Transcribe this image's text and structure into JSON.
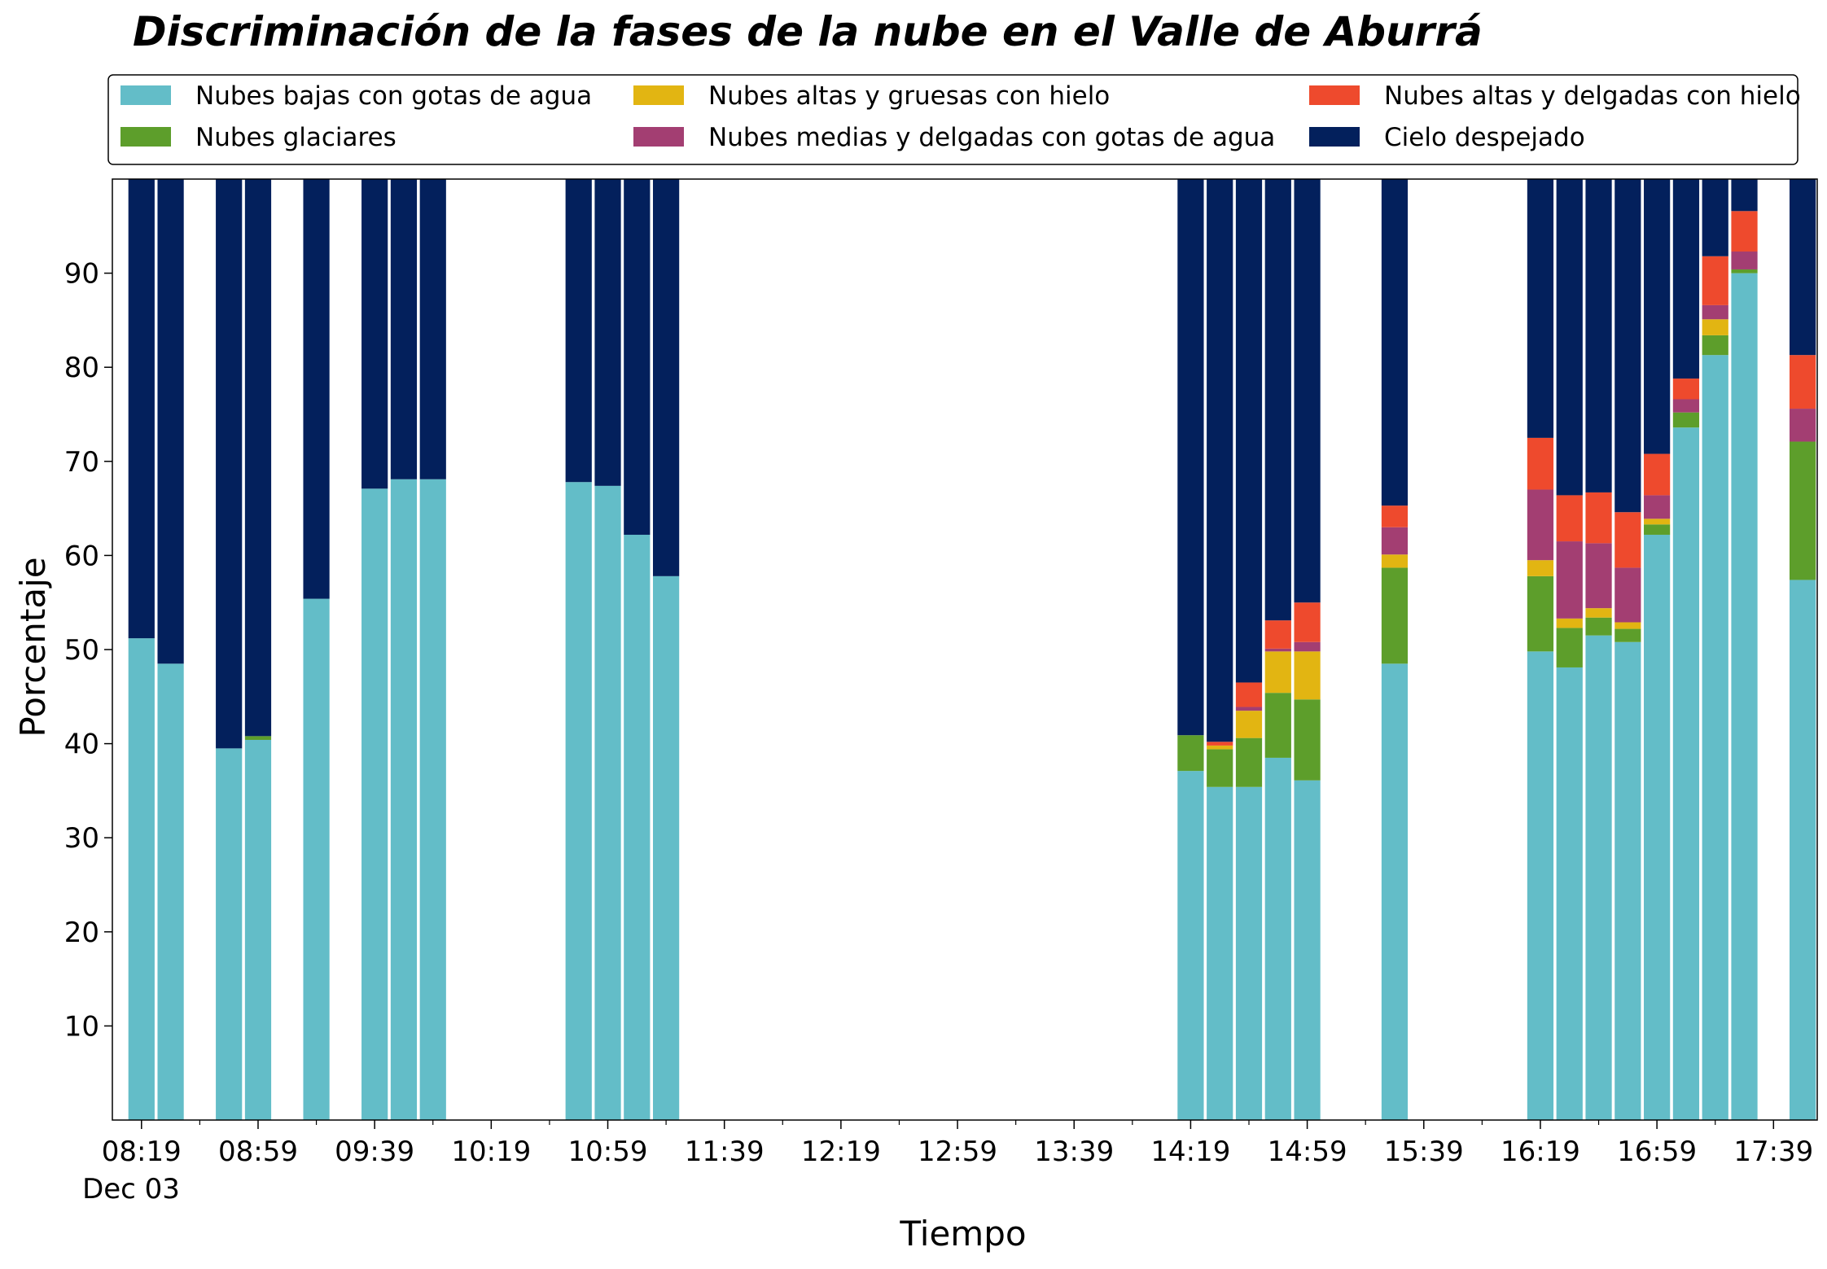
{
  "chart_data": {
    "type": "bar",
    "stacked": true,
    "title": "Discriminación de la fases de la nube en el Valle de Aburrá",
    "xlabel": "Tiempo",
    "ylabel": "Porcentaje",
    "ylim": [
      0,
      100
    ],
    "yticks": [
      10,
      20,
      30,
      40,
      50,
      60,
      70,
      80,
      90
    ],
    "x_range": [
      "08:09",
      "17:54"
    ],
    "x_tick_labels": [
      "08:19",
      "08:59",
      "09:39",
      "10:19",
      "10:59",
      "11:39",
      "12:19",
      "12:59",
      "13:39",
      "14:19",
      "14:59",
      "15:39",
      "16:19",
      "16:59",
      "17:39"
    ],
    "x_date_label": "Dec 03",
    "bar_interval_min": 10,
    "grid": false,
    "legend": {
      "placement": "top",
      "columns": 3
    },
    "x": [
      "08:19",
      "08:29",
      "08:49",
      "08:59",
      "09:19",
      "09:39",
      "09:49",
      "09:59",
      "10:49",
      "10:59",
      "11:09",
      "11:19",
      "14:19",
      "14:29",
      "14:39",
      "14:49",
      "14:59",
      "15:29",
      "16:19",
      "16:29",
      "16:39",
      "16:49",
      "16:59",
      "17:09",
      "17:19",
      "17:29",
      "17:49"
    ],
    "series": [
      {
        "name": "Nubes bajas con gotas de agua",
        "color": "#63bdc8",
        "values": [
          51.2,
          48.5,
          39.5,
          40.4,
          55.4,
          67.1,
          68.1,
          68.1,
          67.8,
          67.4,
          62.2,
          57.8,
          37.1,
          35.4,
          35.4,
          38.5,
          36.1,
          48.5,
          49.8,
          48.1,
          51.5,
          50.8,
          62.2,
          73.6,
          81.3,
          90.0,
          57.4
        ]
      },
      {
        "name": "Nubes glaciares",
        "color": "#5d9e2b",
        "values": [
          0,
          0,
          0,
          0.4,
          0,
          0,
          0,
          0,
          0,
          0,
          0,
          0,
          3.8,
          4.0,
          5.2,
          6.9,
          8.6,
          10.2,
          8.0,
          4.2,
          1.9,
          1.4,
          1.1,
          1.6,
          2.1,
          0.4,
          14.7
        ]
      },
      {
        "name": "Nubes altas y gruesas con hielo",
        "color": "#e2b512",
        "values": [
          0,
          0,
          0,
          0,
          0,
          0,
          0,
          0,
          0,
          0,
          0,
          0,
          0,
          0.4,
          2.9,
          4.4,
          5.1,
          1.4,
          1.7,
          1.0,
          1.0,
          0.7,
          0.6,
          0,
          1.7,
          0,
          0
        ]
      },
      {
        "name": "Nubes medias y delgadas con gotas de agua",
        "color": "#a33e72",
        "values": [
          0,
          0,
          0,
          0,
          0,
          0,
          0,
          0,
          0,
          0,
          0,
          0,
          0,
          0,
          0.4,
          0.3,
          1.0,
          2.9,
          7.5,
          8.2,
          6.9,
          5.8,
          2.5,
          1.4,
          1.5,
          1.9,
          3.5
        ]
      },
      {
        "name": "Nubes altas y delgadas con hielo",
        "color": "#ee4a2d",
        "values": [
          0,
          0,
          0,
          0,
          0,
          0,
          0,
          0,
          0,
          0,
          0,
          0,
          0,
          0.4,
          2.6,
          3.0,
          4.2,
          2.3,
          5.5,
          4.9,
          5.4,
          5.9,
          4.4,
          2.2,
          5.2,
          4.3,
          5.7
        ]
      },
      {
        "name": "Cielo despejado",
        "color": "#03205c",
        "values": [
          48.8,
          51.5,
          60.5,
          59.2,
          44.6,
          32.9,
          31.9,
          31.9,
          32.2,
          32.6,
          37.8,
          42.2,
          59.1,
          59.8,
          53.5,
          46.9,
          45.0,
          34.7,
          27.5,
          33.6,
          33.3,
          35.4,
          29.2,
          21.2,
          8.2,
          3.4,
          18.7
        ]
      }
    ]
  }
}
